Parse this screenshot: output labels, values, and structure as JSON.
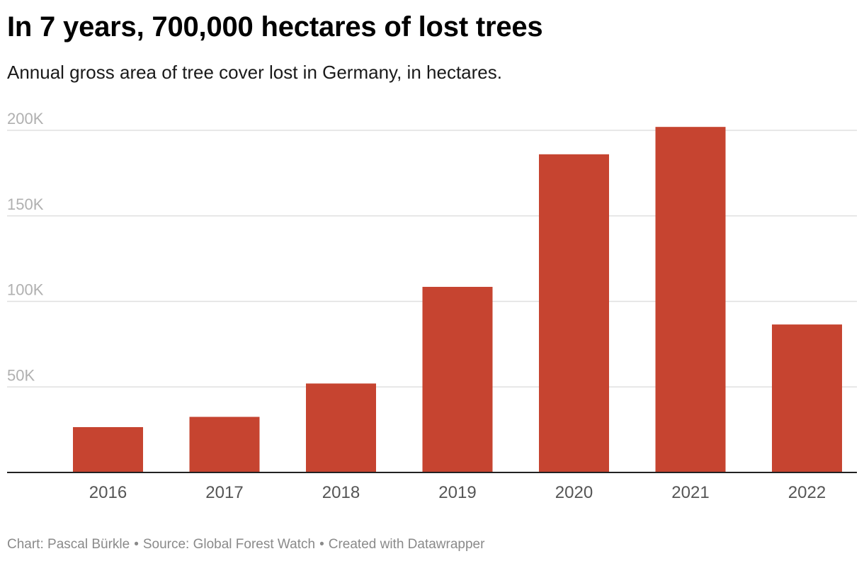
{
  "title": "In 7 years, 700,000 hectares of lost trees",
  "subtitle": "Annual gross area of tree cover lost in Germany, in hectares.",
  "footer": {
    "chart_credit": "Chart: Pascal Bürkle",
    "source": "Source: Global Forest Watch",
    "created": "Created with Datawrapper",
    "separator": "•"
  },
  "colors": {
    "bar": "#c64430",
    "grid": "#e0e0e0",
    "axis": "#222222",
    "tick_label": "#b0b0b0",
    "category_label": "#555555"
  },
  "chart_data": {
    "type": "bar",
    "title": "In 7 years, 700,000 hectares of lost trees",
    "subtitle": "Annual gross area of tree cover lost in Germany, in hectares.",
    "categories": [
      "2016",
      "2017",
      "2018",
      "2019",
      "2020",
      "2021",
      "2022"
    ],
    "values": [
      26500,
      32500,
      52000,
      108500,
      186000,
      202000,
      86500
    ],
    "xlabel": "",
    "ylabel": "",
    "ylim": [
      0,
      200000
    ],
    "yticks": [
      50000,
      100000,
      150000,
      200000
    ],
    "ytick_labels": [
      "50K",
      "100K",
      "150K",
      "200K"
    ],
    "grid": true,
    "legend": "none"
  }
}
